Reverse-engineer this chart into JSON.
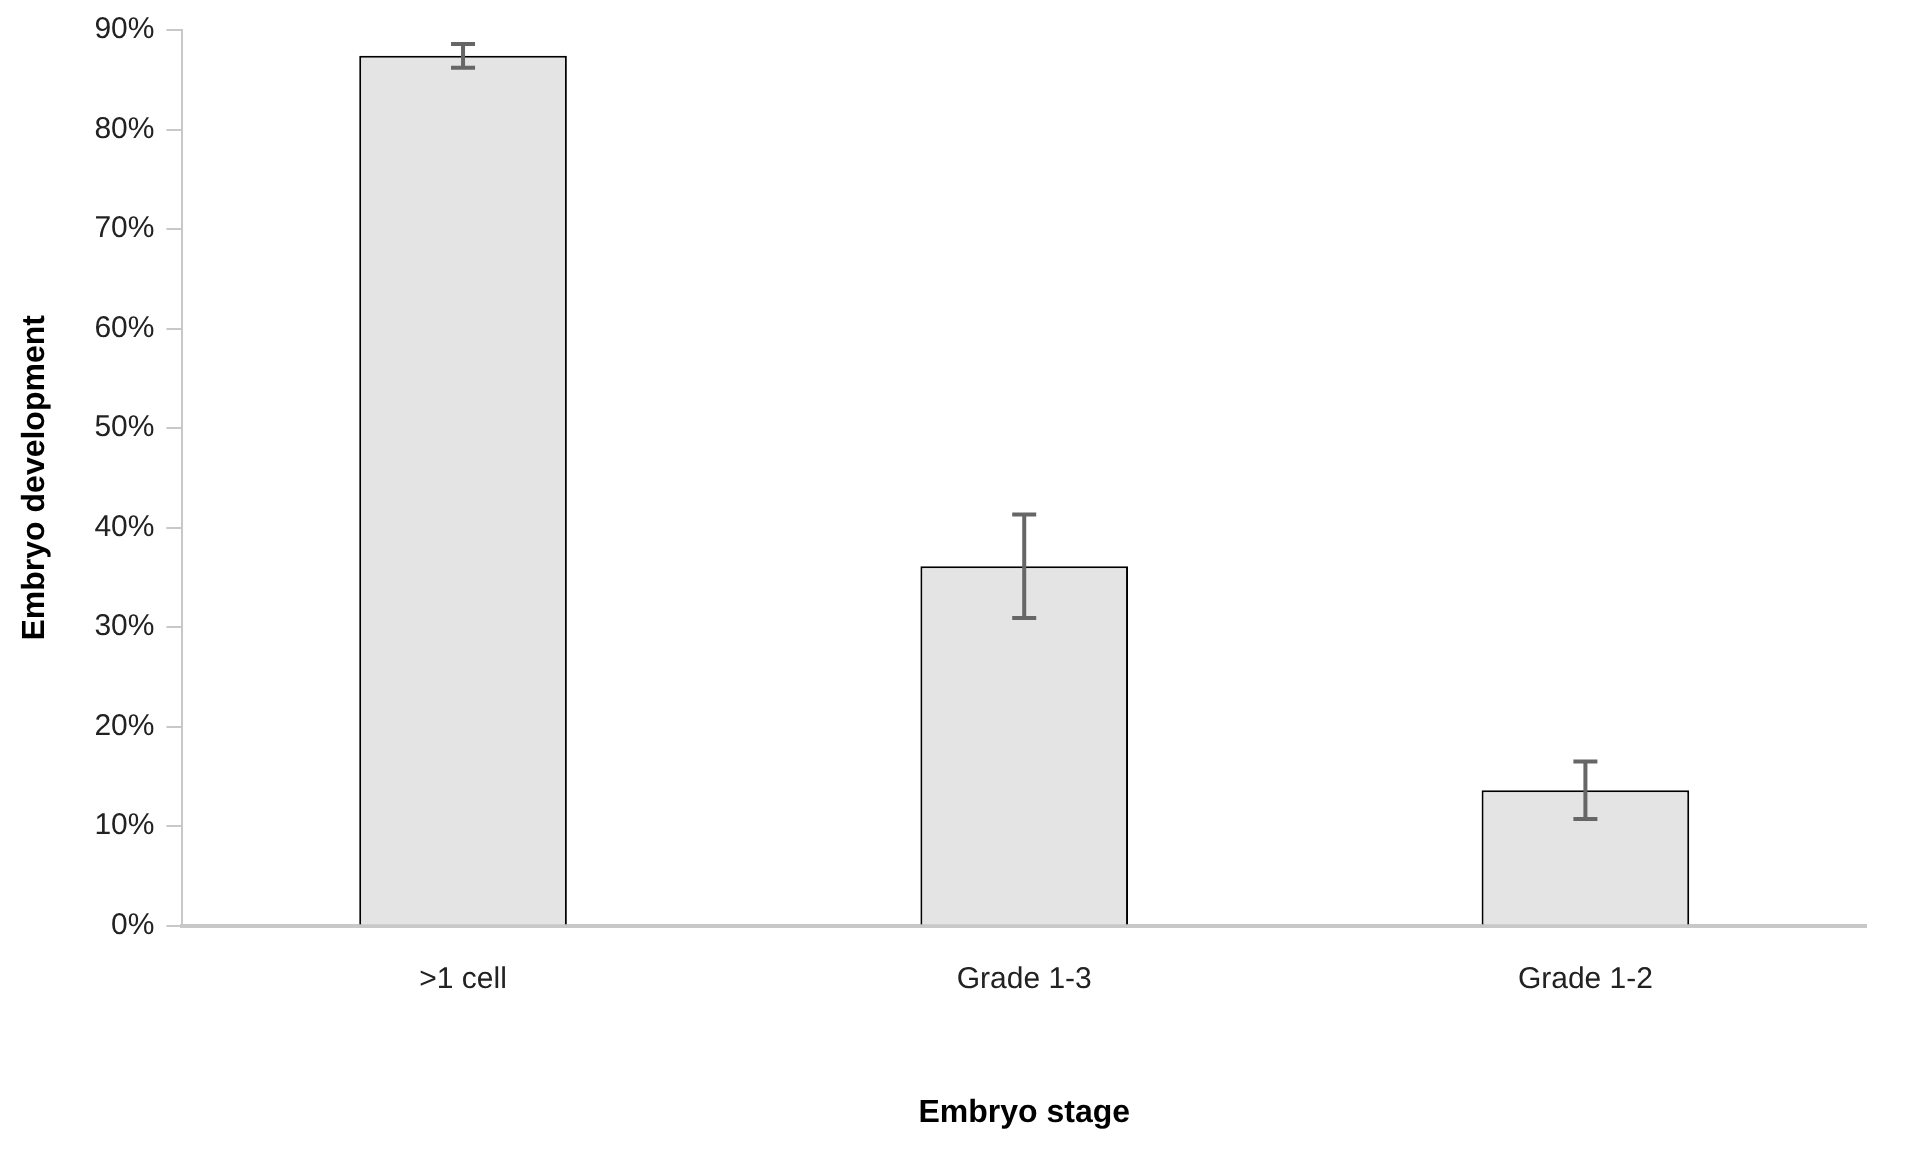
{
  "chart_data": {
    "type": "bar",
    "xlabel": "Embryo stage",
    "ylabel": "Embryo development",
    "categories": [
      ">1 cell",
      "Grade 1-3",
      "Grade 1-2"
    ],
    "values": [
      87.4,
      36.1,
      13.6
    ],
    "errors": [
      [
        86.2,
        88.6
      ],
      [
        30.9,
        41.3
      ],
      [
        10.7,
        16.5
      ]
    ],
    "color": "#e4e4e4",
    "ylim": [
      0,
      90
    ],
    "yticks": [
      {
        "value": 0,
        "label": "0%"
      },
      {
        "value": 10,
        "label": "10%"
      },
      {
        "value": 20,
        "label": "20%"
      },
      {
        "value": 30,
        "label": "30%"
      },
      {
        "value": 40,
        "label": "40%"
      },
      {
        "value": 50,
        "label": "50%"
      },
      {
        "value": 60,
        "label": "60%"
      },
      {
        "value": 70,
        "label": "70%"
      },
      {
        "value": 80,
        "label": "80%"
      },
      {
        "value": 90,
        "label": "90%"
      }
    ],
    "grid": false,
    "legend": false
  }
}
